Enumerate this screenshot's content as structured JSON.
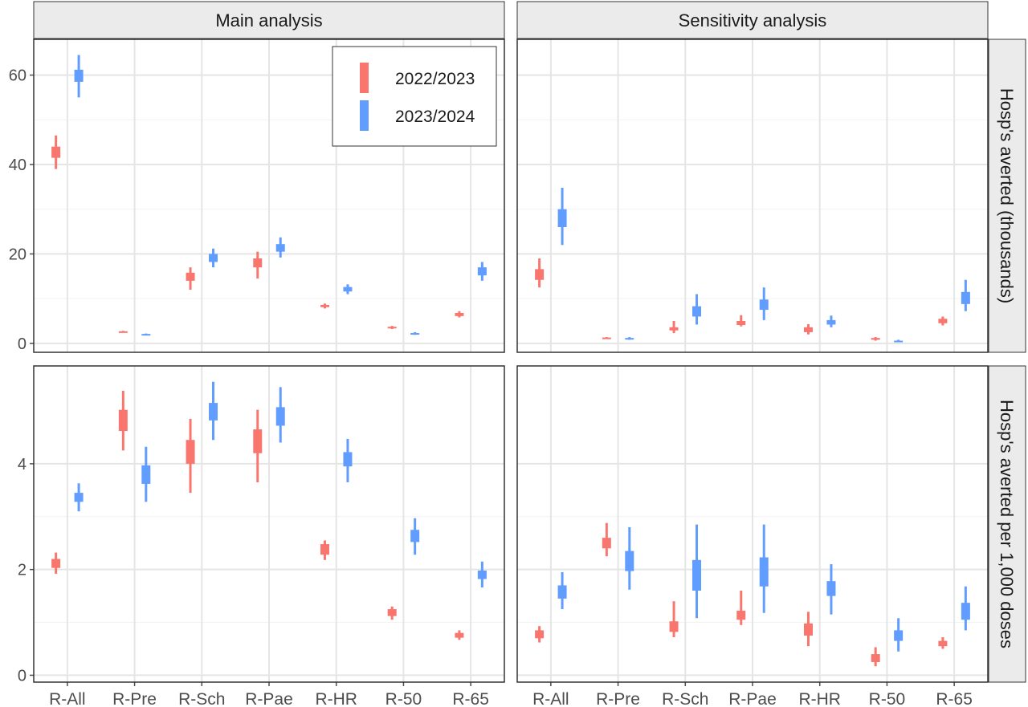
{
  "colors": {
    "s2022": "#f8766d",
    "s2023": "#619cff",
    "grid": "#e5e5e5",
    "strip": "#ebebeb",
    "axis": "#4d4d4d",
    "text": "#333333"
  },
  "strips": {
    "col1": "Main analysis",
    "col2": "Sensitivity analysis",
    "row1": "Hosp's averted (thousands)",
    "row2": "Hosp's averted per 1,000 doses"
  },
  "legend": [
    {
      "label": "2022/2023",
      "color_key": "s2022"
    },
    {
      "label": "2023/2024",
      "color_key": "s2023"
    }
  ],
  "y_ticks": {
    "top": [
      "0",
      "20",
      "40",
      "60"
    ],
    "bottom": [
      "0",
      "2",
      "4"
    ]
  },
  "chart_data": {
    "type": "error-bar",
    "categories": [
      "R-All",
      "R-Pre",
      "R-Sch",
      "R-Pae",
      "R-HR",
      "R-50",
      "R-65"
    ],
    "series_names": [
      "2022/2023",
      "2023/2024"
    ],
    "note": "each point: [lo95, lo50, hi50, hi95]",
    "panels": [
      {
        "column": "Main analysis",
        "row": "Hosp's averted (thousands)",
        "ylim": [
          -2,
          68
        ],
        "ticks": [
          0,
          20,
          40,
          60
        ],
        "series": [
          {
            "name": "2022/2023",
            "values": [
              [
                39.0,
                41.5,
                44.0,
                46.5
              ],
              [
                2.4,
                2.5,
                2.7,
                2.8
              ],
              [
                12.0,
                14.0,
                15.8,
                17.0
              ],
              [
                14.5,
                17.0,
                19.0,
                20.5
              ],
              [
                7.8,
                8.1,
                8.6,
                8.9
              ],
              [
                3.2,
                3.4,
                3.7,
                3.9
              ],
              [
                5.8,
                6.1,
                6.8,
                7.2
              ]
            ]
          },
          {
            "name": "2023/2024",
            "values": [
              [
                55.0,
                58.5,
                61.2,
                64.5
              ],
              [
                1.8,
                1.9,
                2.1,
                2.2
              ],
              [
                17.0,
                18.2,
                20.0,
                21.2
              ],
              [
                19.2,
                20.5,
                22.2,
                23.7
              ],
              [
                11.0,
                11.6,
                12.6,
                13.2
              ],
              [
                1.9,
                2.0,
                2.3,
                2.5
              ],
              [
                14.0,
                15.2,
                17.0,
                18.2
              ]
            ]
          }
        ]
      },
      {
        "column": "Sensitivity analysis",
        "row": "Hosp's averted (thousands)",
        "ylim": [
          -2,
          68
        ],
        "ticks": [
          0,
          20,
          40,
          60
        ],
        "series": [
          {
            "name": "2022/2023",
            "values": [
              [
                12.5,
                14.2,
                16.6,
                19.0
              ],
              [
                1.1,
                1.2,
                1.3,
                1.4
              ],
              [
                2.3,
                2.9,
                3.6,
                5.0
              ],
              [
                3.8,
                4.1,
                5.0,
                6.3
              ],
              [
                2.0,
                2.5,
                3.6,
                4.3
              ],
              [
                0.6,
                0.8,
                1.2,
                1.4
              ],
              [
                4.0,
                4.5,
                5.5,
                6.0
              ]
            ]
          },
          {
            "name": "2023/2024",
            "values": [
              [
                22.0,
                26.0,
                30.0,
                34.8
              ],
              [
                0.8,
                0.9,
                1.2,
                1.4
              ],
              [
                4.2,
                6.0,
                8.3,
                11.0
              ],
              [
                5.2,
                7.5,
                9.8,
                12.5
              ],
              [
                3.6,
                4.2,
                5.2,
                6.2
              ],
              [
                0.3,
                0.4,
                0.6,
                0.8
              ],
              [
                7.2,
                8.8,
                11.5,
                14.2
              ]
            ]
          }
        ]
      },
      {
        "column": "Main analysis",
        "row": "Hosp's averted per 1,000 doses",
        "ylim": [
          -0.13,
          5.85
        ],
        "ticks": [
          0,
          2,
          4
        ],
        "series": [
          {
            "name": "2022/2023",
            "values": [
              [
                1.92,
                2.03,
                2.2,
                2.32
              ],
              [
                4.25,
                4.62,
                5.02,
                5.38
              ],
              [
                3.45,
                4.0,
                4.45,
                4.85
              ],
              [
                3.65,
                4.2,
                4.65,
                5.02
              ],
              [
                2.18,
                2.28,
                2.48,
                2.55
              ],
              [
                1.05,
                1.12,
                1.25,
                1.3
              ],
              [
                0.67,
                0.71,
                0.8,
                0.85
              ]
            ]
          },
          {
            "name": "2023/2024",
            "values": [
              [
                3.1,
                3.28,
                3.45,
                3.63
              ],
              [
                3.28,
                3.62,
                3.97,
                4.32
              ],
              [
                4.45,
                4.82,
                5.15,
                5.55
              ],
              [
                4.4,
                4.72,
                5.07,
                5.45
              ],
              [
                3.65,
                3.95,
                4.22,
                4.47
              ],
              [
                2.28,
                2.52,
                2.75,
                2.97
              ],
              [
                1.66,
                1.82,
                1.98,
                2.15
              ]
            ]
          }
        ]
      },
      {
        "column": "Sensitivity analysis",
        "row": "Hosp's averted per 1,000 doses",
        "ylim": [
          -0.13,
          5.85
        ],
        "ticks": [
          0,
          2,
          4
        ],
        "series": [
          {
            "name": "2022/2023",
            "values": [
              [
                0.62,
                0.7,
                0.85,
                0.93
              ],
              [
                2.25,
                2.4,
                2.6,
                2.88
              ],
              [
                0.72,
                0.82,
                1.02,
                1.4
              ],
              [
                0.95,
                1.05,
                1.22,
                1.6
              ],
              [
                0.55,
                0.75,
                0.98,
                1.2
              ],
              [
                0.17,
                0.25,
                0.4,
                0.53
              ],
              [
                0.5,
                0.55,
                0.65,
                0.72
              ]
            ]
          },
          {
            "name": "2023/2024",
            "values": [
              [
                1.25,
                1.45,
                1.7,
                1.95
              ],
              [
                1.62,
                1.97,
                2.35,
                2.8
              ],
              [
                1.08,
                1.6,
                2.18,
                2.85
              ],
              [
                1.18,
                1.68,
                2.23,
                2.85
              ],
              [
                1.15,
                1.5,
                1.78,
                2.1
              ],
              [
                0.45,
                0.65,
                0.85,
                1.08
              ],
              [
                0.85,
                1.05,
                1.37,
                1.68
              ]
            ]
          }
        ]
      }
    ]
  }
}
